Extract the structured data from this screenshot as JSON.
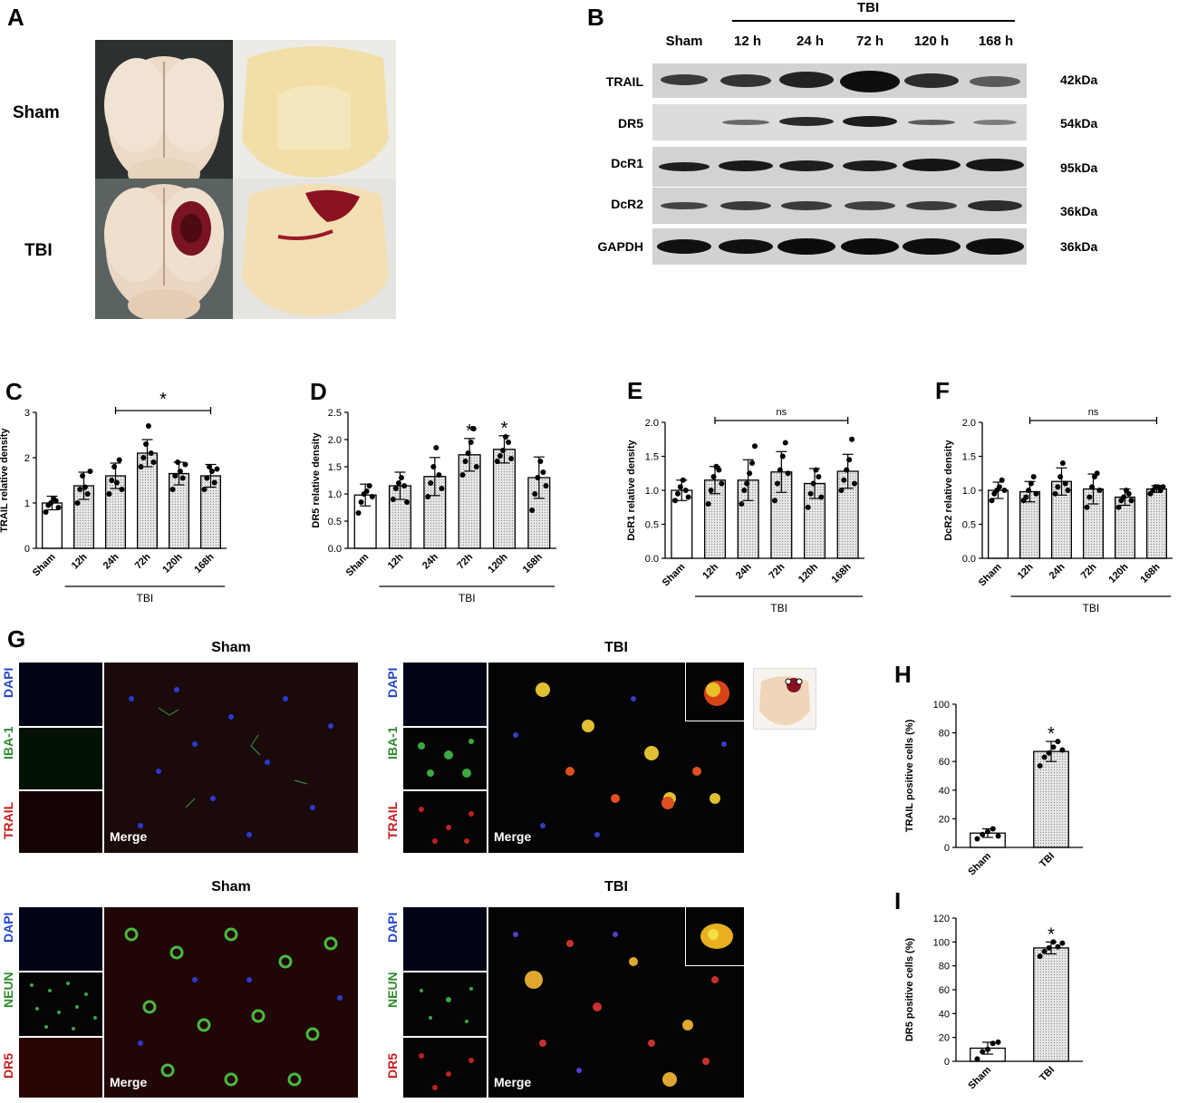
{
  "panel_a": {
    "label": "A",
    "row_labels": [
      "Sham",
      "TBI"
    ]
  },
  "panel_b": {
    "label": "B",
    "group": "TBI",
    "lanes": [
      "Sham",
      "12 h",
      "24 h",
      "72 h",
      "120 h",
      "168 h"
    ],
    "rows": [
      {
        "name": "TRAIL",
        "kda": "42kDa"
      },
      {
        "name": "DR5",
        "kda": "54kDa"
      },
      {
        "name": "DcR1",
        "kda": "95kDa"
      },
      {
        "name": "DcR2",
        "kda": "36kDa"
      },
      {
        "name": "GAPDH",
        "kda": "36kDa"
      }
    ]
  },
  "panel_g": {
    "label": "G",
    "top_left_title": "Sham",
    "top_right_title": "TBI",
    "bottom_left_title": "Sham",
    "bottom_right_title": "TBI",
    "top_channels": [
      "DAPI",
      "IBA-1",
      "TRAIL"
    ],
    "bottom_channels": [
      "DAPI",
      "NEUN",
      "DR5"
    ],
    "merge_label": "Merge"
  },
  "colors": {
    "dapi": "#2646c8",
    "green": "#2f8a2f",
    "red": "#c62020",
    "bar_fill": "#e6e6e6"
  },
  "chart_data": [
    {
      "panel": "C",
      "type": "bar",
      "categories": [
        "Sham",
        "12h",
        "24h",
        "72h",
        "120h",
        "168h"
      ],
      "values": [
        1.0,
        1.38,
        1.6,
        2.1,
        1.65,
        1.6
      ],
      "errors": [
        0.15,
        0.3,
        0.28,
        0.3,
        0.25,
        0.25
      ],
      "points": [
        [
          0.8,
          0.95,
          1.0,
          1.1,
          1.05,
          0.9
        ],
        [
          1.0,
          1.3,
          1.6,
          1.35,
          1.2,
          1.7
        ],
        [
          1.2,
          1.5,
          1.8,
          1.45,
          1.95,
          1.3
        ],
        [
          1.8,
          2.0,
          2.3,
          2.7,
          2.1,
          1.9
        ],
        [
          1.3,
          1.6,
          1.9,
          1.7,
          1.55,
          1.85
        ],
        [
          1.3,
          1.55,
          1.8,
          1.7,
          1.45,
          1.75
        ]
      ],
      "ylabel": "TRAIL relative density",
      "ylim": [
        0,
        3
      ],
      "yticks": [
        "0",
        "1",
        "2",
        "3"
      ],
      "group_label": "TBI",
      "sig": [
        {
          "type": "bracket",
          "from": 2,
          "to": 5,
          "text": "*"
        }
      ]
    },
    {
      "panel": "D",
      "type": "bar",
      "categories": [
        "Sham",
        "12h",
        "24h",
        "72h",
        "120h",
        "168h"
      ],
      "values": [
        0.98,
        1.15,
        1.32,
        1.72,
        1.82,
        1.3
      ],
      "errors": [
        0.2,
        0.25,
        0.35,
        0.3,
        0.25,
        0.38
      ],
      "points": [
        [
          0.65,
          0.85,
          1.0,
          1.05,
          1.15,
          0.95
        ],
        [
          0.9,
          1.1,
          1.2,
          1.3,
          1.15,
          0.85
        ],
        [
          0.95,
          1.2,
          1.5,
          1.85,
          1.35,
          1.1
        ],
        [
          1.35,
          1.6,
          1.75,
          1.95,
          2.2,
          1.5
        ],
        [
          1.6,
          1.7,
          1.8,
          2.05,
          1.95,
          1.65
        ],
        [
          0.7,
          1.0,
          1.3,
          1.6,
          1.4,
          1.15
        ]
      ],
      "ylabel": "DR5 relative density",
      "ylim": [
        0,
        2.5
      ],
      "yticks": [
        "0.0",
        "0.5",
        "1.0",
        "1.5",
        "2.0",
        "2.5"
      ],
      "group_label": "TBI",
      "sig": [
        {
          "type": "star",
          "at": 3,
          "text": "*"
        },
        {
          "type": "star",
          "at": 4,
          "text": "*"
        }
      ]
    },
    {
      "panel": "E",
      "type": "bar",
      "categories": [
        "Sham",
        "12h",
        "24h",
        "72h",
        "120h",
        "168h"
      ],
      "values": [
        1.0,
        1.15,
        1.15,
        1.27,
        1.1,
        1.28
      ],
      "errors": [
        0.15,
        0.2,
        0.3,
        0.3,
        0.22,
        0.25
      ],
      "points": [
        [
          0.85,
          0.95,
          1.05,
          1.15,
          1.0,
          0.9
        ],
        [
          0.8,
          1.0,
          1.2,
          1.35,
          1.3,
          1.1
        ],
        [
          0.8,
          1.0,
          1.1,
          1.25,
          1.4,
          1.65
        ],
        [
          0.85,
          1.1,
          1.3,
          1.5,
          1.7,
          1.25
        ],
        [
          0.75,
          0.95,
          1.1,
          1.3,
          1.2,
          0.9
        ],
        [
          1.0,
          1.15,
          1.3,
          1.45,
          1.75,
          1.1
        ]
      ],
      "ylabel": "DcR1 relative density",
      "ylim": [
        0,
        2.0
      ],
      "yticks": [
        "0.0",
        "0.5",
        "1.0",
        "1.5",
        "2.0"
      ],
      "group_label": "TBI",
      "sig": [
        {
          "type": "bracket",
          "from": 1,
          "to": 5,
          "text": "ns"
        }
      ]
    },
    {
      "panel": "F",
      "type": "bar",
      "categories": [
        "Sham",
        "12h",
        "24h",
        "72h",
        "120h",
        "168h"
      ],
      "values": [
        1.0,
        0.98,
        1.13,
        1.02,
        0.9,
        1.02
      ],
      "errors": [
        0.12,
        0.15,
        0.2,
        0.22,
        0.12,
        0.05
      ],
      "points": [
        [
          0.85,
          0.95,
          1.0,
          1.05,
          1.15,
          1.0
        ],
        [
          0.85,
          0.9,
          1.0,
          1.1,
          1.2,
          0.95
        ],
        [
          0.95,
          1.05,
          1.2,
          1.4,
          1.1,
          1.0
        ],
        [
          0.75,
          0.9,
          1.05,
          1.2,
          1.25,
          1.0
        ],
        [
          0.75,
          0.85,
          0.9,
          1.0,
          0.95,
          0.85
        ],
        [
          0.95,
          1.0,
          1.05,
          1.05,
          1.0,
          1.05
        ]
      ],
      "ylabel": "DcR2 relative density",
      "ylim": [
        0,
        2.0
      ],
      "yticks": [
        "0.0",
        "0.5",
        "1.0",
        "1.5",
        "2.0"
      ],
      "group_label": "TBI",
      "sig": [
        {
          "type": "bracket",
          "from": 1,
          "to": 5,
          "text": "ns"
        }
      ]
    },
    {
      "panel": "H",
      "type": "bar",
      "categories": [
        "Sham",
        "TBI"
      ],
      "values": [
        10,
        67
      ],
      "errors": [
        3,
        7
      ],
      "points": [
        [
          6,
          9,
          11,
          13,
          8
        ],
        [
          57,
          63,
          66,
          70,
          74,
          68
        ]
      ],
      "ylabel": "TRAIL positive cells (%)",
      "ylim": [
        0,
        100
      ],
      "yticks": [
        "0",
        "20",
        "40",
        "60",
        "80",
        "100"
      ],
      "sig": [
        {
          "type": "star",
          "at": 1,
          "text": "*"
        }
      ]
    },
    {
      "panel": "I",
      "type": "bar",
      "categories": [
        "Sham",
        "TBI"
      ],
      "values": [
        11,
        95
      ],
      "errors": [
        5,
        5
      ],
      "points": [
        [
          2,
          8,
          10,
          15,
          16
        ],
        [
          88,
          92,
          95,
          100,
          96,
          99
        ]
      ],
      "ylabel": "DR5 positive cells (%)",
      "ylim": [
        0,
        120
      ],
      "yticks": [
        "0",
        "20",
        "40",
        "60",
        "80",
        "100",
        "120"
      ],
      "sig": [
        {
          "type": "star",
          "at": 1,
          "text": "*"
        }
      ]
    }
  ]
}
